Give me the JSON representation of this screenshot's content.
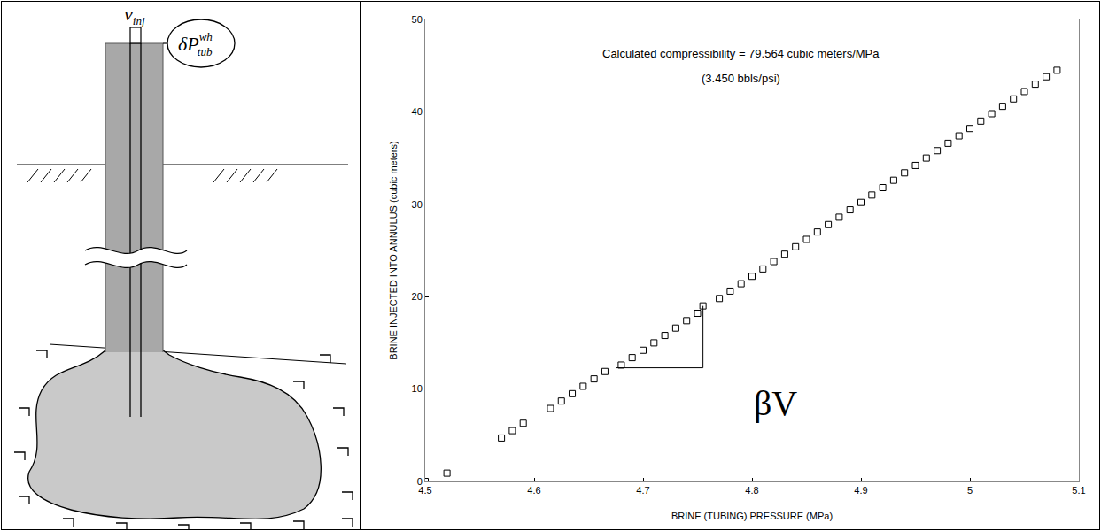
{
  "chart_data": {
    "type": "scatter",
    "xlabel": "BRINE (TUBING) PRESSURE (MPa)",
    "ylabel": "BRINE INJECTED INTO ANNULUS (cubic meters)",
    "x": [
      4.5,
      4.52,
      4.57,
      4.58,
      4.59,
      4.615,
      4.625,
      4.635,
      4.645,
      4.655,
      4.665,
      4.68,
      4.69,
      4.7,
      4.71,
      4.72,
      4.73,
      4.74,
      4.75,
      4.755,
      4.77,
      4.78,
      4.79,
      4.8,
      4.81,
      4.82,
      4.83,
      4.84,
      4.85,
      4.86,
      4.87,
      4.88,
      4.89,
      4.9,
      4.91,
      4.92,
      4.93,
      4.94,
      4.95,
      4.96,
      4.97,
      4.98,
      4.99,
      5.0,
      5.01,
      5.02,
      5.03,
      5.04,
      5.05,
      5.06,
      5.07,
      5.08
    ],
    "values": [
      0,
      0.9,
      4.7,
      5.5,
      6.3,
      7.9,
      8.7,
      9.5,
      10.3,
      11.1,
      11.9,
      12.6,
      13.4,
      14.2,
      15.0,
      15.8,
      16.6,
      17.4,
      18.2,
      19.0,
      19.8,
      20.6,
      21.4,
      22.2,
      23.0,
      23.8,
      24.6,
      25.4,
      26.2,
      27.0,
      27.8,
      28.6,
      29.4,
      30.2,
      31.0,
      31.8,
      32.6,
      33.4,
      34.2,
      35.0,
      35.8,
      36.6,
      37.4,
      38.2,
      39.0,
      39.8,
      40.6,
      41.4,
      42.2,
      43.0,
      43.8,
      44.5
    ],
    "color": "#000000",
    "marker": "square-open",
    "xlim": [
      4.5,
      5.1
    ],
    "xticks": [
      4.5,
      4.6,
      4.7,
      4.8,
      4.9,
      5,
      5.1
    ],
    "ylim": [
      0,
      50
    ],
    "yticks": [
      0,
      10,
      20,
      30,
      40,
      50
    ],
    "grid": false,
    "annotations": [
      {
        "text": "Calculated compressibility = 79.564 cubic meters/MPa",
        "x": 4.79,
        "y": 46.3
      },
      {
        "text": "(3.450 bbls/psi)",
        "x": 4.79,
        "y": 43.6
      },
      {
        "text": "βV",
        "x": 4.8,
        "y": 8.5
      }
    ],
    "slope_triangle": {
      "x": [
        4.675,
        4.755
      ],
      "y": [
        12.3,
        19.0
      ]
    }
  },
  "diagram": {
    "injection_label": {
      "symbol": "v",
      "subscript": "inj"
    },
    "pressure_label": {
      "symbol": "δP",
      "superscript": "wh",
      "subscript": "tub"
    }
  }
}
